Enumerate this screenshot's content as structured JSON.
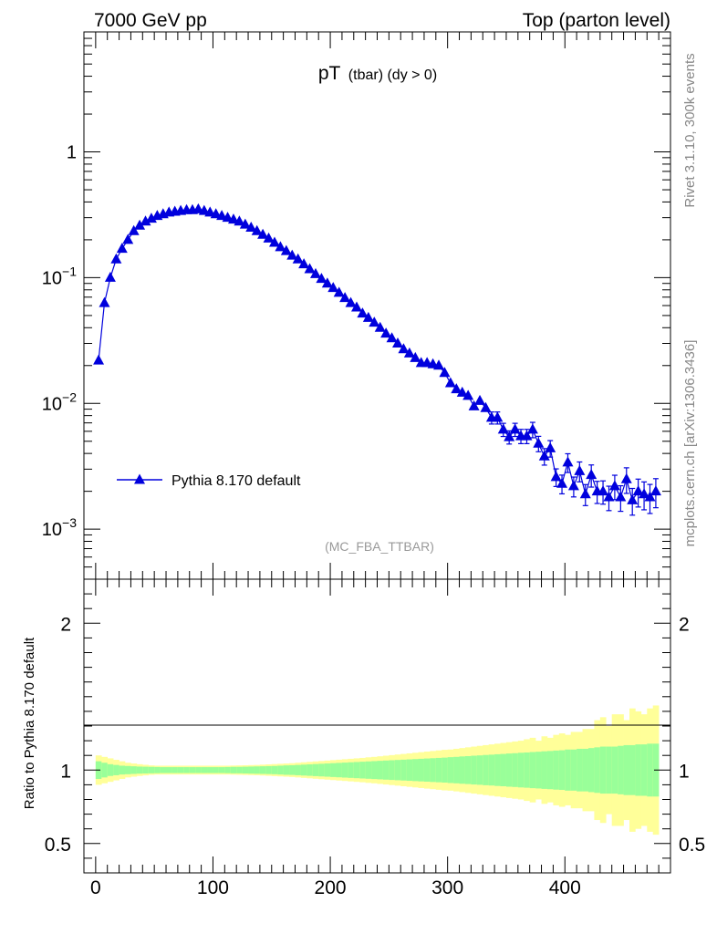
{
  "header": {
    "left": "7000 GeV pp",
    "right": "Top (parton level)"
  },
  "side_labels": {
    "rivet": "Rivet 3.1.10,  300k events",
    "mcplots": "mcplots.cern.ch [arXiv:1306.3436]"
  },
  "colors": {
    "series": "#0000dd",
    "band_outer": "#ffff99",
    "band_inner": "#99ff99",
    "watermark": "#999999",
    "side_text": "#888888"
  },
  "chart_data": [
    {
      "type": "line",
      "title": "pT",
      "title_sub": "(tbar) (dy > 0)",
      "watermark": "(MC_FBA_TTBAR)",
      "xlabel": "",
      "ylabel": "",
      "xlim": [
        -10,
        490
      ],
      "ylim": [
        0.0004,
        9
      ],
      "yscale": "log",
      "yticks": [
        {
          "value": 0.001,
          "base": "10",
          "exp": "−3"
        },
        {
          "value": 0.01,
          "base": "10",
          "exp": "−2"
        },
        {
          "value": 0.1,
          "base": "10",
          "exp": "−1"
        },
        {
          "value": 1,
          "base": "1",
          "exp": ""
        }
      ],
      "legend_position": "lower-left",
      "series": [
        {
          "name": "Pythia 8.170 default",
          "marker": "triangle-up",
          "x": [
            2.5,
            7.5,
            12.5,
            17.5,
            22.5,
            27.5,
            32.5,
            37.5,
            42.5,
            47.5,
            52.5,
            57.5,
            62.5,
            67.5,
            72.5,
            77.5,
            82.5,
            87.5,
            92.5,
            97.5,
            102.5,
            107.5,
            112.5,
            117.5,
            122.5,
            127.5,
            132.5,
            137.5,
            142.5,
            147.5,
            152.5,
            157.5,
            162.5,
            167.5,
            172.5,
            177.5,
            182.5,
            187.5,
            192.5,
            197.5,
            202.5,
            207.5,
            212.5,
            217.5,
            222.5,
            227.5,
            232.5,
            237.5,
            242.5,
            247.5,
            252.5,
            257.5,
            262.5,
            267.5,
            272.5,
            277.5,
            282.5,
            287.5,
            292.5,
            297.5,
            302.5,
            307.5,
            312.5,
            317.5,
            322.5,
            327.5,
            332.5,
            337.5,
            342.5,
            347.5,
            352.5,
            357.5,
            362.5,
            367.5,
            372.5,
            377.5,
            382.5,
            387.5,
            392.5,
            397.5,
            402.5,
            407.5,
            412.5,
            417.5,
            422.5,
            427.5,
            432.5,
            437.5,
            442.5,
            447.5,
            452.5,
            457.5,
            462.5,
            467.5,
            472.5,
            477.5
          ],
          "y": [
            0.022,
            0.063,
            0.1,
            0.14,
            0.17,
            0.2,
            0.235,
            0.26,
            0.28,
            0.295,
            0.31,
            0.32,
            0.33,
            0.335,
            0.34,
            0.345,
            0.345,
            0.35,
            0.34,
            0.33,
            0.32,
            0.31,
            0.3,
            0.29,
            0.28,
            0.265,
            0.25,
            0.235,
            0.22,
            0.205,
            0.19,
            0.175,
            0.163,
            0.15,
            0.14,
            0.128,
            0.117,
            0.107,
            0.098,
            0.09,
            0.083,
            0.076,
            0.069,
            0.063,
            0.058,
            0.052,
            0.048,
            0.044,
            0.04,
            0.036,
            0.033,
            0.03,
            0.027,
            0.025,
            0.023,
            0.021,
            0.021,
            0.0205,
            0.02,
            0.0175,
            0.0145,
            0.013,
            0.0122,
            0.0115,
            0.0095,
            0.0105,
            0.0092,
            0.0077,
            0.0077,
            0.0062,
            0.0054,
            0.0062,
            0.0055,
            0.0055,
            0.0062,
            0.0048,
            0.0038,
            0.0044,
            0.0026,
            0.0023,
            0.0034,
            0.0022,
            0.0029,
            0.0019,
            0.0027,
            0.002,
            0.002,
            0.0018,
            0.0022,
            0.0018,
            0.0025,
            0.0017,
            0.002,
            0.0019,
            0.0018,
            0.002
          ],
          "err_rel": [
            0.02,
            0.015,
            0.012,
            0.01,
            0.01,
            0.01,
            0.01,
            0.01,
            0.01,
            0.01,
            0.01,
            0.01,
            0.01,
            0.01,
            0.01,
            0.01,
            0.01,
            0.01,
            0.01,
            0.01,
            0.01,
            0.01,
            0.01,
            0.01,
            0.012,
            0.012,
            0.012,
            0.013,
            0.013,
            0.014,
            0.015,
            0.016,
            0.017,
            0.018,
            0.019,
            0.02,
            0.021,
            0.022,
            0.023,
            0.025,
            0.026,
            0.028,
            0.03,
            0.031,
            0.033,
            0.035,
            0.037,
            0.039,
            0.041,
            0.043,
            0.045,
            0.047,
            0.05,
            0.052,
            0.054,
            0.057,
            0.06,
            0.063,
            0.066,
            0.07,
            0.075,
            0.08,
            0.085,
            0.09,
            0.095,
            0.1,
            0.1,
            0.11,
            0.11,
            0.12,
            0.12,
            0.12,
            0.13,
            0.13,
            0.14,
            0.14,
            0.15,
            0.15,
            0.16,
            0.17,
            0.17,
            0.18,
            0.18,
            0.19,
            0.2,
            0.2,
            0.21,
            0.22,
            0.22,
            0.23,
            0.23,
            0.24,
            0.25,
            0.25,
            0.26,
            0.26
          ]
        }
      ]
    },
    {
      "type": "area",
      "ylabel": "Ratio to Pythia 8.170 default",
      "xlabel": "",
      "xlim": [
        -10,
        490
      ],
      "ylim": [
        0.3,
        2.3
      ],
      "xticks": [
        0,
        100,
        200,
        300,
        400
      ],
      "yticks": [
        0.5,
        1,
        2
      ],
      "reference_line": 1,
      "bins_x": [
        2.5,
        7.5,
        12.5,
        17.5,
        22.5,
        27.5,
        32.5,
        37.5,
        42.5,
        47.5,
        52.5,
        57.5,
        62.5,
        67.5,
        72.5,
        77.5,
        82.5,
        87.5,
        92.5,
        97.5,
        102.5,
        107.5,
        112.5,
        117.5,
        122.5,
        127.5,
        132.5,
        137.5,
        142.5,
        147.5,
        152.5,
        157.5,
        162.5,
        167.5,
        172.5,
        177.5,
        182.5,
        187.5,
        192.5,
        197.5,
        202.5,
        207.5,
        212.5,
        217.5,
        222.5,
        227.5,
        232.5,
        237.5,
        242.5,
        247.5,
        252.5,
        257.5,
        262.5,
        267.5,
        272.5,
        277.5,
        282.5,
        287.5,
        292.5,
        297.5,
        302.5,
        307.5,
        312.5,
        317.5,
        322.5,
        327.5,
        332.5,
        337.5,
        342.5,
        347.5,
        352.5,
        357.5,
        362.5,
        367.5,
        372.5,
        377.5,
        382.5,
        387.5,
        392.5,
        397.5,
        402.5,
        407.5,
        412.5,
        417.5,
        422.5,
        427.5,
        432.5,
        437.5,
        442.5,
        447.5,
        452.5,
        457.5,
        462.5,
        467.5,
        472.5,
        477.5
      ],
      "inner_halfwidth": [
        0.06,
        0.05,
        0.04,
        0.035,
        0.03,
        0.028,
        0.026,
        0.024,
        0.023,
        0.022,
        0.021,
        0.02,
        0.02,
        0.02,
        0.02,
        0.02,
        0.02,
        0.02,
        0.02,
        0.02,
        0.02,
        0.02,
        0.021,
        0.022,
        0.022,
        0.023,
        0.024,
        0.025,
        0.026,
        0.027,
        0.028,
        0.03,
        0.032,
        0.033,
        0.035,
        0.037,
        0.039,
        0.041,
        0.043,
        0.045,
        0.047,
        0.049,
        0.051,
        0.053,
        0.055,
        0.057,
        0.059,
        0.061,
        0.063,
        0.065,
        0.067,
        0.069,
        0.071,
        0.073,
        0.075,
        0.077,
        0.079,
        0.081,
        0.083,
        0.085,
        0.088,
        0.09,
        0.093,
        0.095,
        0.098,
        0.1,
        0.103,
        0.105,
        0.108,
        0.11,
        0.113,
        0.115,
        0.118,
        0.12,
        0.123,
        0.125,
        0.128,
        0.13,
        0.133,
        0.135,
        0.14,
        0.14,
        0.145,
        0.145,
        0.15,
        0.155,
        0.16,
        0.16,
        0.16,
        0.165,
        0.17,
        0.17,
        0.175,
        0.175,
        0.18,
        0.18
      ],
      "outer_halfwidth": [
        0.1,
        0.09,
        0.08,
        0.07,
        0.06,
        0.05,
        0.045,
        0.04,
        0.036,
        0.032,
        0.03,
        0.03,
        0.03,
        0.03,
        0.03,
        0.03,
        0.03,
        0.03,
        0.03,
        0.03,
        0.03,
        0.03,
        0.03,
        0.031,
        0.032,
        0.033,
        0.034,
        0.035,
        0.037,
        0.039,
        0.041,
        0.043,
        0.045,
        0.047,
        0.05,
        0.053,
        0.056,
        0.059,
        0.062,
        0.065,
        0.068,
        0.071,
        0.074,
        0.077,
        0.08,
        0.083,
        0.087,
        0.09,
        0.094,
        0.098,
        0.102,
        0.106,
        0.11,
        0.114,
        0.118,
        0.122,
        0.126,
        0.13,
        0.134,
        0.138,
        0.14,
        0.145,
        0.15,
        0.155,
        0.16,
        0.165,
        0.17,
        0.175,
        0.18,
        0.185,
        0.19,
        0.195,
        0.2,
        0.21,
        0.22,
        0.2,
        0.23,
        0.22,
        0.24,
        0.25,
        0.24,
        0.26,
        0.26,
        0.28,
        0.28,
        0.34,
        0.36,
        0.3,
        0.38,
        0.38,
        0.34,
        0.42,
        0.4,
        0.38,
        0.42,
        0.44
      ]
    }
  ]
}
